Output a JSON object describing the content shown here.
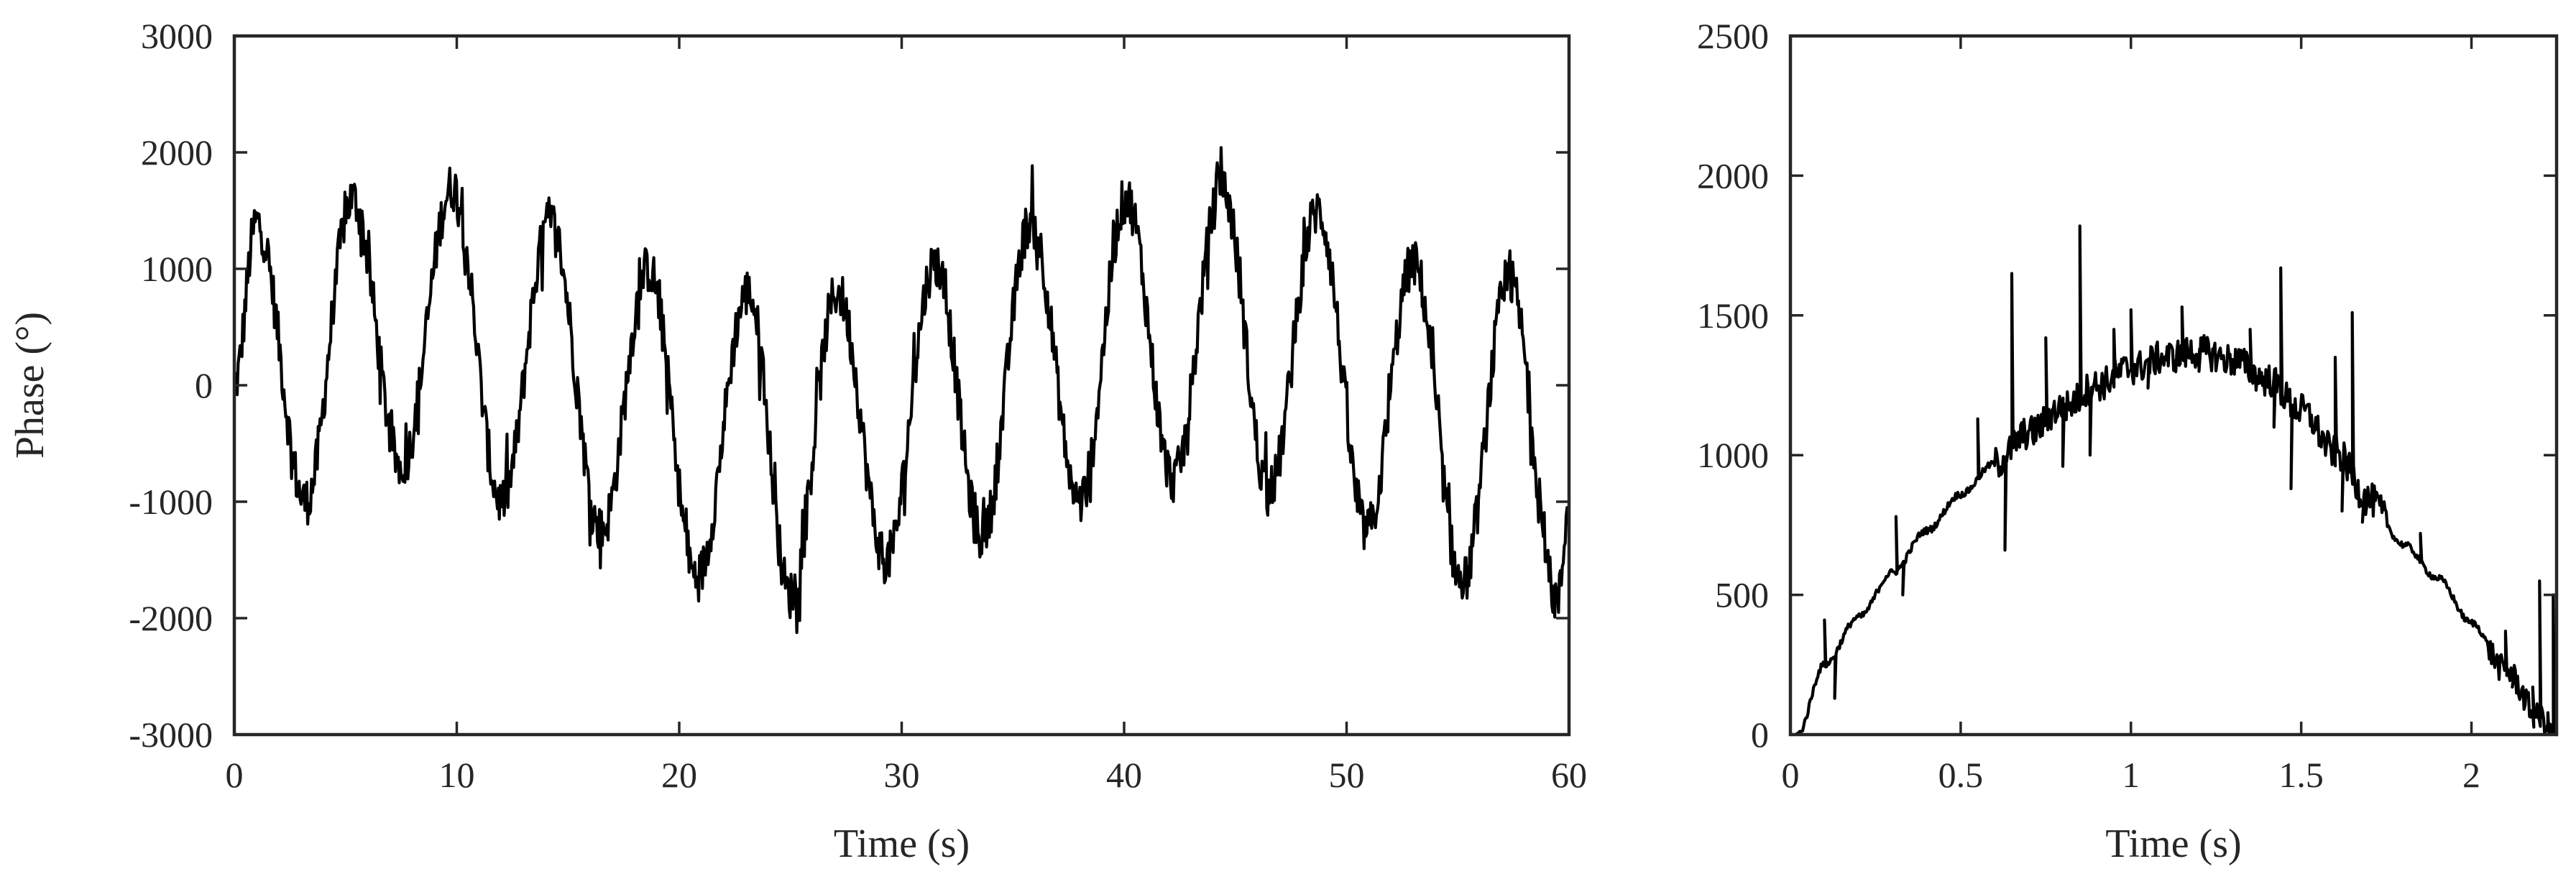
{
  "colors": {
    "axis": "#262626",
    "line": "#000000",
    "background": "#ffffff"
  },
  "chart_data": [
    {
      "type": "line",
      "title": "",
      "xlabel": "Time (s)",
      "ylabel": "Phase (°)",
      "xlim": [
        0,
        60
      ],
      "ylim": [
        -3000,
        3000
      ],
      "grid": false,
      "xticks": [
        0,
        10,
        20,
        30,
        40,
        50,
        60
      ],
      "yticks": [
        -3000,
        -2000,
        -1000,
        0,
        1000,
        2000,
        3000
      ],
      "xtick_labels": [
        "0",
        "10",
        "20",
        "30",
        "40",
        "50",
        "60"
      ],
      "ytick_labels": [
        "-3000",
        "-2000",
        "-1000",
        "0",
        "1000",
        "2000",
        "3000"
      ],
      "series": [
        {
          "x": [
            0,
            1,
            3.2,
            5.3,
            7.5,
            9.8,
            12,
            14.2,
            16.5,
            18.6,
            20.8,
            23.1,
            25,
            27.1,
            29.3,
            31.5,
            33.6,
            35.8,
            38,
            40.1,
            42.2,
            44.4,
            46.5,
            48.7,
            50.9,
            53,
            55.2,
            57.3,
            59.5,
            60
          ],
          "y": [
            0,
            1400,
            -1000,
            1600,
            -700,
            1700,
            -1000,
            1400,
            -1250,
            1000,
            -1650,
            800,
            -1800,
            800,
            -1500,
            1050,
            -1300,
            1400,
            -1000,
            1600,
            -800,
            1700,
            -900,
            1500,
            -1250,
            1050,
            -1700,
            900,
            -1850,
            -1000
          ]
        }
      ]
    },
    {
      "type": "line",
      "title": "",
      "xlabel": "Time (s)",
      "ylabel": "",
      "xlim": [
        0,
        2.25
      ],
      "ylim": [
        0,
        2500
      ],
      "grid": false,
      "xticks": [
        0,
        0.5,
        1,
        1.5,
        2
      ],
      "yticks": [
        0,
        500,
        1000,
        1500,
        2000,
        2500
      ],
      "xtick_labels": [
        "0",
        "0.5",
        "1",
        "1.5",
        "2"
      ],
      "ytick_labels": [
        "0",
        "500",
        "1000",
        "1500",
        "2000",
        "2500"
      ],
      "series": [
        {
          "x": [
            0.02,
            0.1,
            0.2,
            0.3,
            0.4,
            0.5,
            0.6,
            0.7,
            0.8,
            0.9,
            1.0,
            1.1,
            1.2,
            1.3,
            1.4,
            1.5,
            1.6,
            1.7,
            1.8,
            1.9,
            2.0,
            2.1,
            2.2,
            2.25
          ],
          "y": [
            0,
            250,
            420,
            580,
            730,
            860,
            970,
            1080,
            1170,
            1250,
            1310,
            1350,
            1370,
            1340,
            1270,
            1160,
            1010,
            840,
            680,
            560,
            400,
            230,
            60,
            0
          ]
        }
      ],
      "spikes": [
        {
          "x": 0.1,
          "y": 410
        },
        {
          "x": 0.13,
          "y": 130
        },
        {
          "x": 0.31,
          "y": 780
        },
        {
          "x": 0.33,
          "y": 500
        },
        {
          "x": 0.55,
          "y": 1130
        },
        {
          "x": 0.63,
          "y": 660
        },
        {
          "x": 0.65,
          "y": 1650
        },
        {
          "x": 0.68,
          "y": 1050
        },
        {
          "x": 0.75,
          "y": 1420
        },
        {
          "x": 0.8,
          "y": 960
        },
        {
          "x": 0.85,
          "y": 1820
        },
        {
          "x": 0.88,
          "y": 1000
        },
        {
          "x": 0.95,
          "y": 1450
        },
        {
          "x": 1.0,
          "y": 1520
        },
        {
          "x": 1.05,
          "y": 1240
        },
        {
          "x": 1.15,
          "y": 1530
        },
        {
          "x": 1.2,
          "y": 1300
        },
        {
          "x": 1.35,
          "y": 1450
        },
        {
          "x": 1.42,
          "y": 1100
        },
        {
          "x": 1.44,
          "y": 1670
        },
        {
          "x": 1.47,
          "y": 880
        },
        {
          "x": 1.6,
          "y": 1350
        },
        {
          "x": 1.62,
          "y": 800
        },
        {
          "x": 1.65,
          "y": 1510
        },
        {
          "x": 1.68,
          "y": 760
        },
        {
          "x": 1.85,
          "y": 720
        },
        {
          "x": 2.1,
          "y": 370
        },
        {
          "x": 2.12,
          "y": 170
        },
        {
          "x": 2.18,
          "y": 170
        },
        {
          "x": 2.2,
          "y": 550
        },
        {
          "x": 2.22,
          "y": 20
        },
        {
          "x": 2.24,
          "y": 500
        }
      ]
    }
  ]
}
